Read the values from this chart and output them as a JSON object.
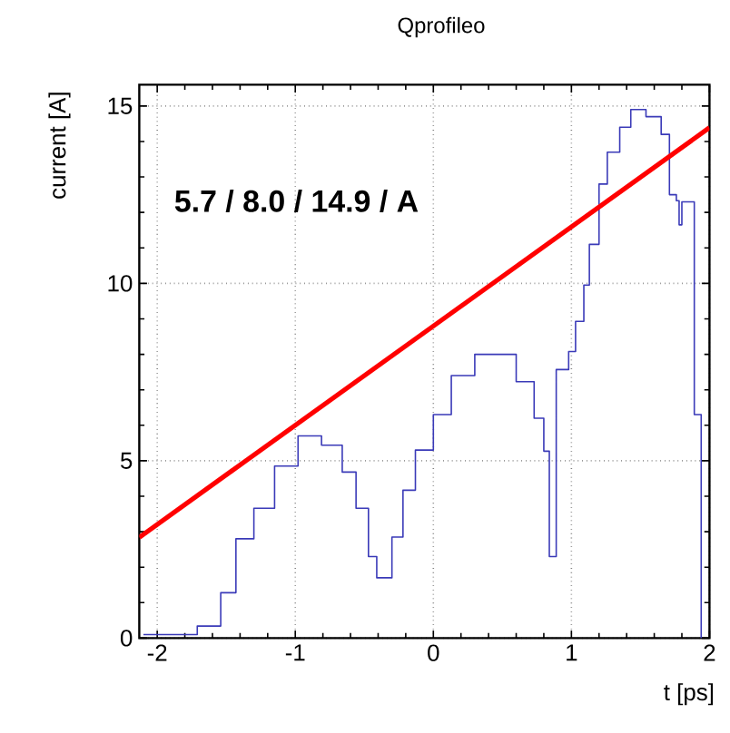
{
  "chart_data": {
    "type": "step",
    "title": "Qprofileo",
    "xlabel": "t [ps]",
    "ylabel": "current [A]",
    "xlim": [
      -2.13,
      2.0
    ],
    "ylim": [
      0,
      15.6
    ],
    "xticks": [
      -2,
      -1,
      0,
      1,
      2
    ],
    "yticks": [
      0,
      5,
      10,
      15
    ],
    "grid": true,
    "annotations": [
      "5.7 / 8.0 / 14.9 /  A"
    ],
    "series": [
      {
        "color": "#3a3ab8",
        "x": [
          -2.1,
          -1.71,
          -1.54,
          -1.43,
          -1.3,
          -1.15,
          -0.98,
          -0.81,
          -0.66,
          -0.56,
          -0.47,
          -0.41,
          -0.3,
          -0.22,
          -0.13,
          0.0,
          0.13,
          0.3,
          0.45,
          0.6,
          0.73,
          0.8,
          0.84,
          0.89,
          0.98,
          1.03,
          1.09,
          1.13,
          1.2,
          1.26,
          1.35,
          1.43,
          1.54,
          1.65,
          1.71,
          1.76,
          1.78,
          1.8,
          1.89,
          1.94
        ],
        "values": [
          0.1,
          0.34,
          1.28,
          2.8,
          3.66,
          4.85,
          5.7,
          5.44,
          4.68,
          3.66,
          2.3,
          1.7,
          2.85,
          4.17,
          5.3,
          6.3,
          7.4,
          8.0,
          8.0,
          7.23,
          6.2,
          5.27,
          2.3,
          7.57,
          8.08,
          8.93,
          9.95,
          11.1,
          12.8,
          13.7,
          14.4,
          14.9,
          14.7,
          14.2,
          12.5,
          12.33,
          11.65,
          12.3,
          6.3,
          0
        ]
      },
      {
        "type": "line",
        "color": "#ff0000",
        "x": [
          -2.13,
          2.0
        ],
        "values": [
          2.84,
          14.39
        ]
      }
    ]
  }
}
